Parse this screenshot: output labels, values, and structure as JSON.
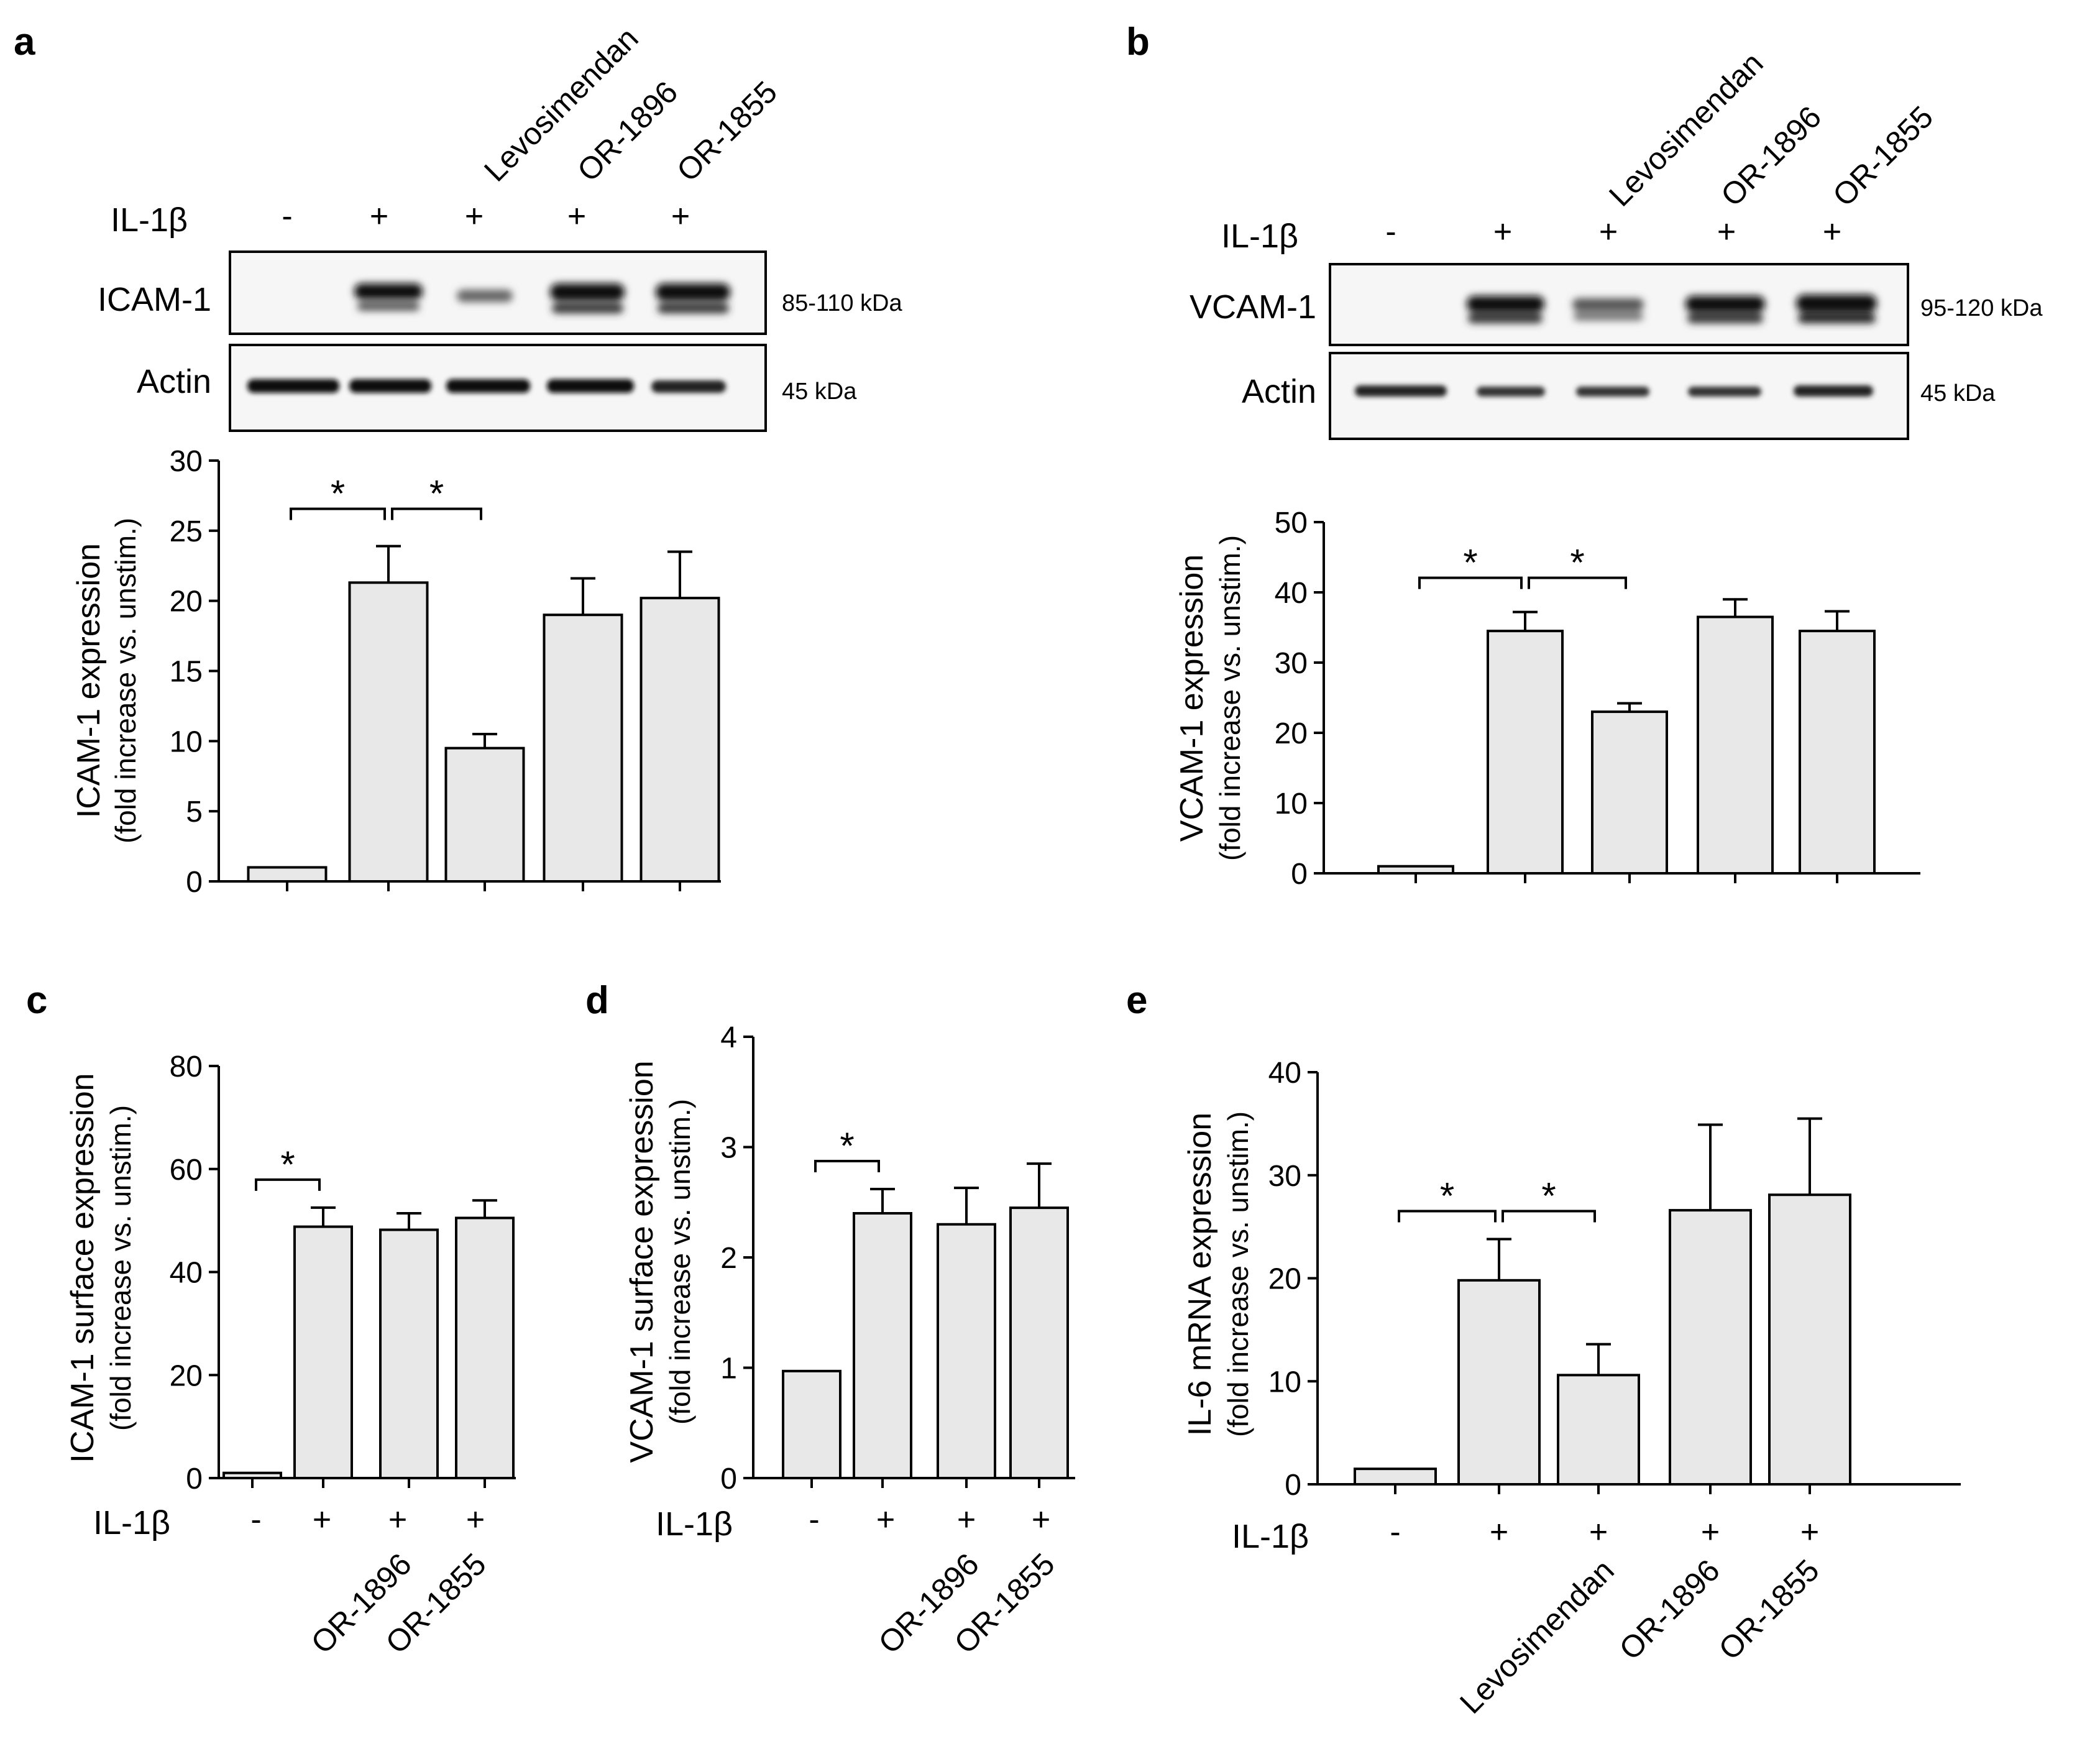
{
  "figure": {
    "panel_letters": [
      "a",
      "b",
      "c",
      "d",
      "e"
    ]
  },
  "chart_data": [
    {
      "panel": "a",
      "type": "bar",
      "treatment_labels": [
        "Levosimendan",
        "OR-1896",
        "OR-1855"
      ],
      "il1b_label": "IL-1β",
      "il1b_signs": [
        "-",
        "+",
        "+",
        "+",
        "+"
      ],
      "blot": {
        "rows": [
          {
            "name": "ICAM-1",
            "kda": "85-110 kDa"
          },
          {
            "name": "Actin",
            "kda": "45 kDa"
          }
        ]
      },
      "ylabel": "ICAM-1 expression",
      "ylabel2": "(fold increase vs. unstim.)",
      "ylim": [
        0,
        30
      ],
      "yticks": [
        0,
        5,
        10,
        15,
        20,
        25,
        30
      ],
      "values": [
        1,
        21.3,
        9.5,
        19,
        20.2
      ],
      "errors": [
        0,
        2.6,
        1.0,
        2.6,
        3.3
      ],
      "significance": [
        {
          "from": 0,
          "to": 1,
          "label": "*"
        },
        {
          "from": 1,
          "to": 2,
          "label": "*"
        }
      ]
    },
    {
      "panel": "b",
      "type": "bar",
      "treatment_labels": [
        "Levosimendan",
        "OR-1896",
        "OR-1855"
      ],
      "il1b_label": "IL-1β",
      "il1b_signs": [
        "-",
        "+",
        "+",
        "+",
        "+"
      ],
      "blot": {
        "rows": [
          {
            "name": "VCAM-1",
            "kda": "95-120 kDa"
          },
          {
            "name": "Actin",
            "kda": "45 kDa"
          }
        ]
      },
      "ylabel": "VCAM-1 expression",
      "ylabel2": "(fold increase vs. unstim.)",
      "ylim": [
        0,
        50
      ],
      "yticks": [
        0,
        10,
        20,
        30,
        40,
        50
      ],
      "values": [
        1,
        34.5,
        23,
        36.5,
        34.5
      ],
      "errors": [
        0,
        2.7,
        1.2,
        2.5,
        2.8
      ],
      "significance": [
        {
          "from": 0,
          "to": 1,
          "label": "*"
        },
        {
          "from": 1,
          "to": 2,
          "label": "*"
        }
      ]
    },
    {
      "panel": "c",
      "type": "bar",
      "treatment_labels": [
        "OR-1896",
        "OR-1855"
      ],
      "il1b_label": "IL-1β",
      "il1b_signs": [
        "-",
        "+",
        "+",
        "+"
      ],
      "ylabel": "ICAM-1 surface expression",
      "ylabel2": "(fold increase vs. unstim.)",
      "ylim": [
        0,
        80
      ],
      "yticks": [
        0,
        20,
        40,
        60,
        80
      ],
      "values": [
        1,
        48.8,
        48.2,
        50.5
      ],
      "errors": [
        0,
        3.7,
        3.2,
        3.4
      ],
      "significance": [
        {
          "from": 0,
          "to": 1,
          "label": "*"
        }
      ]
    },
    {
      "panel": "d",
      "type": "bar",
      "treatment_labels": [
        "OR-1896",
        "OR-1855"
      ],
      "il1b_label": "IL-1β",
      "il1b_signs": [
        "-",
        "+",
        "+",
        "+"
      ],
      "ylabel": "VCAM-1 surface expression",
      "ylabel2": "(fold increase vs. unstim.)",
      "ylim": [
        0,
        4
      ],
      "yticks": [
        0,
        1,
        2,
        3,
        4
      ],
      "values": [
        0.97,
        2.4,
        2.3,
        2.45
      ],
      "errors": [
        0,
        0.22,
        0.33,
        0.4
      ],
      "significance": [
        {
          "from": 0,
          "to": 1,
          "label": "*"
        }
      ]
    },
    {
      "panel": "e",
      "type": "bar",
      "treatment_labels": [
        "Levosimendan",
        "OR-1896",
        "OR-1855"
      ],
      "il1b_label": "IL-1β",
      "il1b_signs": [
        "-",
        "+",
        "+",
        "+",
        "+"
      ],
      "ylabel": "IL-6 mRNA expression",
      "ylabel2": "(fold increase vs. unstim.)",
      "ylim": [
        0,
        40
      ],
      "yticks": [
        0,
        10,
        20,
        30,
        40
      ],
      "values": [
        1.5,
        19.8,
        10.6,
        26.6,
        28.1
      ],
      "errors": [
        0,
        4.0,
        3.0,
        8.3,
        7.4
      ],
      "significance": [
        {
          "from": 0,
          "to": 1,
          "label": "*"
        },
        {
          "from": 1,
          "to": 2,
          "label": "*"
        }
      ]
    }
  ]
}
